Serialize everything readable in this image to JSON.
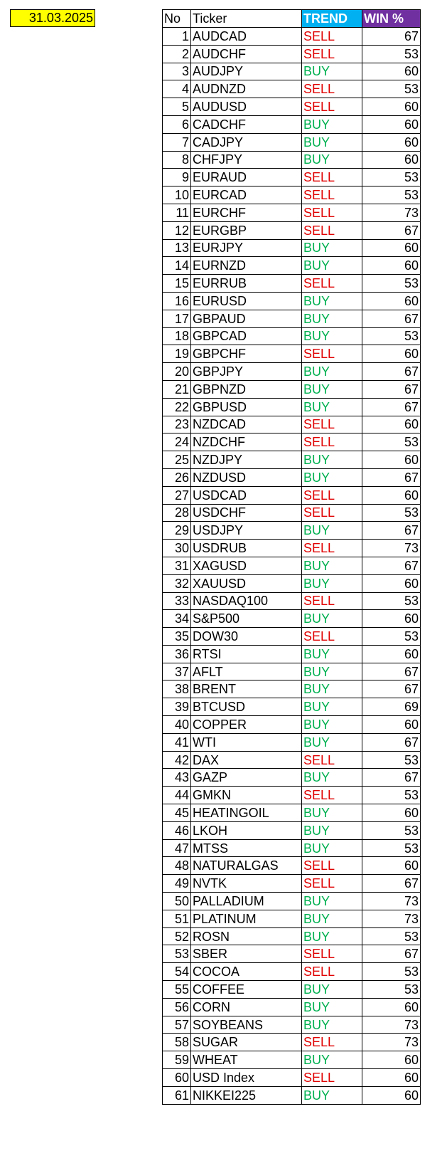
{
  "date": "31.03.2025",
  "trend_colors": {
    "SELL": "#e00000",
    "BUY": "#00b050"
  },
  "table": {
    "header": [
      "No",
      "Ticker",
      "TREND",
      "WIN %"
    ],
    "rows": [
      [
        1,
        "AUDCAD",
        "SELL",
        67
      ],
      [
        2,
        "AUDCHF",
        "SELL",
        53
      ],
      [
        3,
        "AUDJPY",
        "BUY",
        60
      ],
      [
        4,
        "AUDNZD",
        "SELL",
        53
      ],
      [
        5,
        "AUDUSD",
        "SELL",
        60
      ],
      [
        6,
        "CADCHF",
        "BUY",
        60
      ],
      [
        7,
        "CADJPY",
        "BUY",
        60
      ],
      [
        8,
        "CHFJPY",
        "BUY",
        60
      ],
      [
        9,
        "EURAUD",
        "SELL",
        53
      ],
      [
        10,
        "EURCAD",
        "SELL",
        53
      ],
      [
        11,
        "EURCHF",
        "SELL",
        73
      ],
      [
        12,
        "EURGBP",
        "SELL",
        67
      ],
      [
        13,
        "EURJPY",
        "BUY",
        60
      ],
      [
        14,
        "EURNZD",
        "BUY",
        60
      ],
      [
        15,
        "EURRUB",
        "SELL",
        53
      ],
      [
        16,
        "EURUSD",
        "BUY",
        60
      ],
      [
        17,
        "GBPAUD",
        "BUY",
        67
      ],
      [
        18,
        "GBPCAD",
        "BUY",
        53
      ],
      [
        19,
        "GBPCHF",
        "SELL",
        60
      ],
      [
        20,
        "GBPJPY",
        "BUY",
        67
      ],
      [
        21,
        "GBPNZD",
        "BUY",
        67
      ],
      [
        22,
        "GBPUSD",
        "BUY",
        67
      ],
      [
        23,
        "NZDCAD",
        "SELL",
        60
      ],
      [
        24,
        "NZDCHF",
        "SELL",
        53
      ],
      [
        25,
        "NZDJPY",
        "BUY",
        60
      ],
      [
        26,
        "NZDUSD",
        "BUY",
        67
      ],
      [
        27,
        "USDCAD",
        "SELL",
        60
      ],
      [
        28,
        "USDCHF",
        "SELL",
        53
      ],
      [
        29,
        "USDJPY",
        "BUY",
        67
      ],
      [
        30,
        "USDRUB",
        "SELL",
        73
      ],
      [
        31,
        "XAGUSD",
        "BUY",
        67
      ],
      [
        32,
        "XAUUSD",
        "BUY",
        60
      ],
      [
        33,
        "NASDAQ100",
        "SELL",
        53
      ],
      [
        34,
        "S&P500",
        "BUY",
        60
      ],
      [
        35,
        "DOW30",
        "SELL",
        53
      ],
      [
        36,
        "RTSI",
        "BUY",
        60
      ],
      [
        37,
        "AFLT",
        "BUY",
        67
      ],
      [
        38,
        "BRENT",
        "BUY",
        67
      ],
      [
        39,
        "BTCUSD",
        "BUY",
        69
      ],
      [
        40,
        "COPPER",
        "BUY",
        60
      ],
      [
        41,
        "WTI",
        "BUY",
        67
      ],
      [
        42,
        "DAX",
        "SELL",
        53
      ],
      [
        43,
        "GAZP",
        "BUY",
        67
      ],
      [
        44,
        "GMKN",
        "SELL",
        53
      ],
      [
        45,
        "HEATINGOIL",
        "BUY",
        60
      ],
      [
        46,
        "LKOH",
        "BUY",
        53
      ],
      [
        47,
        "MTSS",
        "BUY",
        53
      ],
      [
        48,
        "NATURALGAS",
        "SELL",
        60
      ],
      [
        49,
        "NVTK",
        "SELL",
        67
      ],
      [
        50,
        "PALLADIUM",
        "BUY",
        73
      ],
      [
        51,
        "PLATINUM",
        "BUY",
        73
      ],
      [
        52,
        "ROSN",
        "BUY",
        53
      ],
      [
        53,
        "SBER",
        "SELL",
        67
      ],
      [
        54,
        "COCOA",
        "SELL",
        53
      ],
      [
        55,
        "COFFEE",
        "BUY",
        53
      ],
      [
        56,
        "CORN",
        "BUY",
        60
      ],
      [
        57,
        "SOYBEANS",
        "BUY",
        73
      ],
      [
        58,
        "SUGAR",
        "SELL",
        73
      ],
      [
        59,
        "WHEAT",
        "BUY",
        60
      ],
      [
        60,
        "USD Index",
        "SELL",
        60
      ],
      [
        61,
        "NIKKEI225",
        "BUY",
        60
      ]
    ]
  }
}
